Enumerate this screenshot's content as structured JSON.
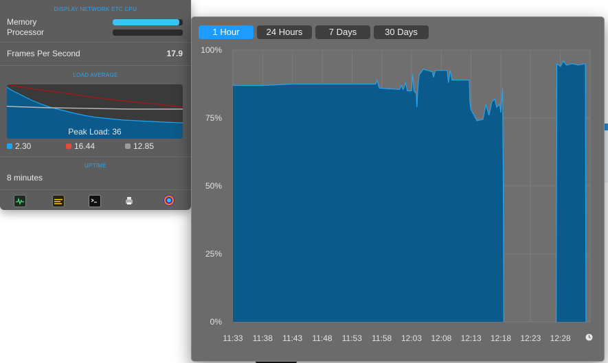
{
  "stats_panel": {
    "section_title": "DISPLAY NETWORK ETC CPU",
    "memory": {
      "label": "Memory",
      "fill_fraction": 0.95
    },
    "processor": {
      "label": "Processor",
      "fill_fraction": 0.0
    },
    "fps": {
      "label": "Frames Per Second",
      "value": "17.9"
    },
    "load_title": "LOAD AVERAGE",
    "peak_load": "Peak Load: 36",
    "load_values": [
      {
        "value": "2.30",
        "color": "#1aa6f5"
      },
      {
        "value": "16.44",
        "color": "#e94a2f"
      },
      {
        "value": "12.85",
        "color": "#9c9c9c"
      }
    ],
    "uptime_title": "UPTIME",
    "uptime_value": "8 minutes",
    "app_icons": [
      "activity-monitor-icon",
      "console-icon",
      "terminal-icon",
      "printer-icon",
      "app-launcher-icon"
    ]
  },
  "graph_window": {
    "tabs": [
      {
        "label": "1 Hour",
        "active": true
      },
      {
        "label": "24 Hours",
        "active": false
      },
      {
        "label": "7 Days",
        "active": false
      },
      {
        "label": "30 Days",
        "active": false
      }
    ],
    "clock_icon": "clock-icon"
  },
  "chart_data": {
    "type": "area",
    "title": "",
    "xlabel": "",
    "ylabel": "",
    "y_ticks": [
      "100%",
      "75%",
      "50%",
      "25%",
      "0%"
    ],
    "x_ticks": [
      "11:33",
      "11:38",
      "11:43",
      "11:48",
      "11:53",
      "11:58",
      "12:03",
      "12:08",
      "12:13",
      "12:18",
      "12:23",
      "12:28"
    ],
    "ylim": [
      0,
      100
    ],
    "xlim_minutes": [
      0,
      60
    ],
    "grid": true,
    "series": [
      {
        "color": "#0a5a8c",
        "line_color": "#2aa3ee",
        "segments": [
          [
            [
              0,
              87
            ],
            [
              5,
              87
            ],
            [
              10,
              87.5
            ],
            [
              15,
              87.5
            ],
            [
              20,
              87.5
            ],
            [
              24,
              87.5
            ],
            [
              24.2,
              89
            ],
            [
              24.6,
              86
            ],
            [
              28,
              85.5
            ],
            [
              28.3,
              87
            ],
            [
              28.6,
              85.5
            ],
            [
              29,
              88
            ],
            [
              29.3,
              85
            ],
            [
              30,
              85
            ],
            [
              30.2,
              91
            ],
            [
              30.4,
              85
            ],
            [
              30.8,
              84
            ],
            [
              30.9,
              79
            ],
            [
              31.1,
              87
            ],
            [
              31.3,
              91
            ],
            [
              32,
              93
            ],
            [
              33.5,
              92
            ],
            [
              33.7,
              90
            ],
            [
              34,
              92.5
            ],
            [
              36,
              92.5
            ],
            [
              36.2,
              88
            ],
            [
              36.5,
              92.5
            ],
            [
              36.8,
              89
            ],
            [
              39.7,
              89
            ],
            [
              39.8,
              81
            ],
            [
              40,
              78
            ],
            [
              40.5,
              76
            ],
            [
              41,
              74
            ],
            [
              42,
              74.5
            ],
            [
              42.5,
              80
            ],
            [
              43,
              76
            ],
            [
              43.5,
              81
            ],
            [
              44,
              82
            ],
            [
              44.3,
              79
            ],
            [
              44.8,
              80
            ],
            [
              45,
              77
            ],
            [
              45.3,
              86
            ],
            [
              45.4,
              53
            ],
            [
              45.5,
              0
            ]
          ],
          [
            [
              54.3,
              0
            ],
            [
              54.4,
              95
            ],
            [
              55,
              94
            ],
            [
              55.5,
              96
            ],
            [
              56,
              94.5
            ],
            [
              57,
              95
            ],
            [
              58,
              94.5
            ],
            [
              59.2,
              95
            ],
            [
              59.3,
              0
            ]
          ]
        ]
      }
    ]
  }
}
